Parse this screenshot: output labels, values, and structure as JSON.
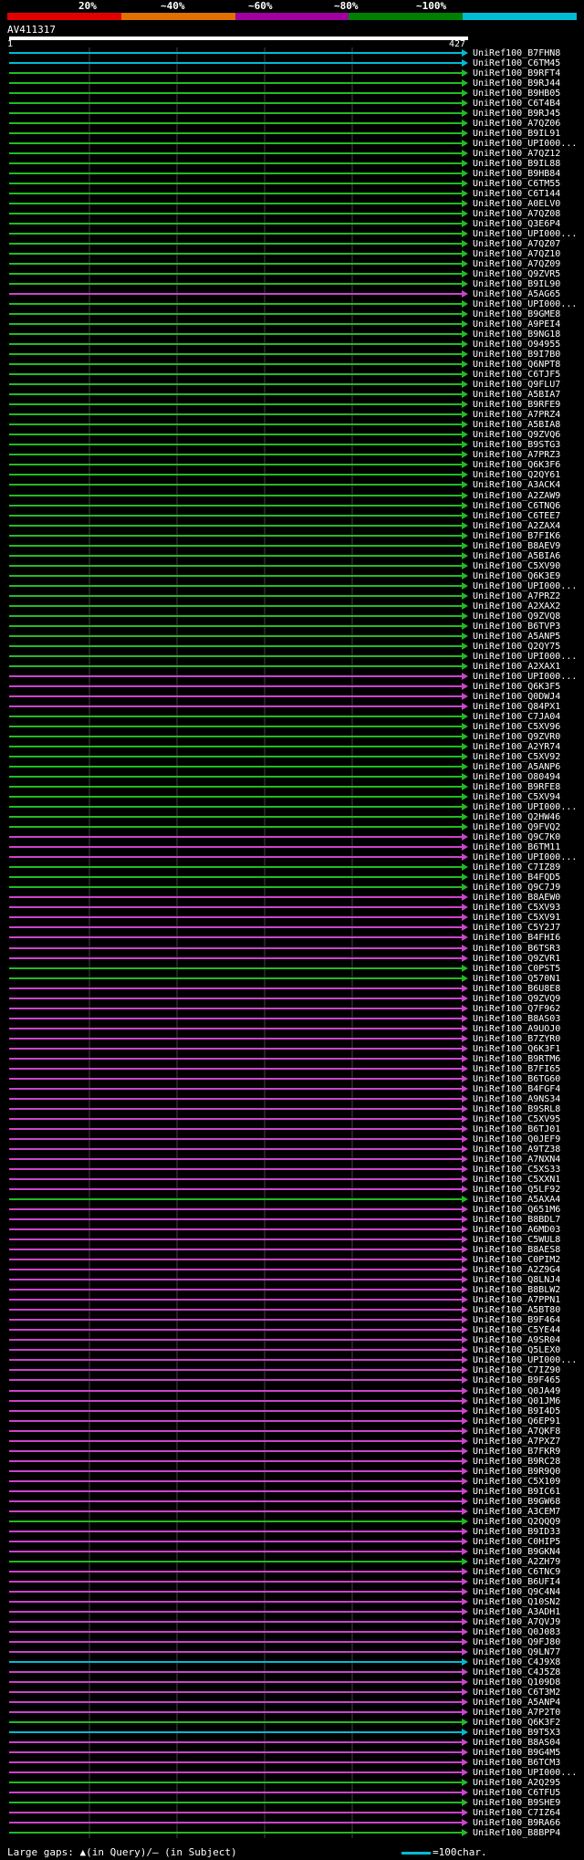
{
  "header": {
    "percent_labels": [
      "20%",
      "~40%",
      "~60%",
      "~80%",
      "~100%"
    ],
    "scale_colors": [
      "#e00000",
      "#e07000",
      "#a000a0",
      "#008000",
      "#00bcd4"
    ],
    "query_name": "AV411317",
    "query_start": "1",
    "query_end": "427"
  },
  "colors": {
    "cyan": "#00bcd4",
    "green": "#22bb22",
    "magenta": "#cc44cc",
    "gridline": "#444444",
    "background": "#000000"
  },
  "hits": [
    {
      "name": "UniRef100_B7FHN8",
      "color": "cyan"
    },
    {
      "name": "UniRef100_C6TM45",
      "color": "cyan"
    },
    {
      "name": "UniRef100_B9RFT4",
      "color": "green"
    },
    {
      "name": "UniRef100_B9RJ44",
      "color": "green"
    },
    {
      "name": "UniRef100_B9HB05",
      "color": "green"
    },
    {
      "name": "UniRef100_C6T4B4",
      "color": "green"
    },
    {
      "name": "UniRef100_B9RJ45",
      "color": "green"
    },
    {
      "name": "UniRef100_A7QZ06",
      "color": "green"
    },
    {
      "name": "UniRef100_B9IL91",
      "color": "green"
    },
    {
      "name": "UniRef100_UPI000...",
      "color": "green"
    },
    {
      "name": "UniRef100_A7QZ12",
      "color": "green"
    },
    {
      "name": "UniRef100_B9IL88",
      "color": "green"
    },
    {
      "name": "UniRef100_B9HB84",
      "color": "green"
    },
    {
      "name": "UniRef100_C6TM55",
      "color": "green"
    },
    {
      "name": "UniRef100_C6T144",
      "color": "green"
    },
    {
      "name": "UniRef100_A0ELV0",
      "color": "green"
    },
    {
      "name": "UniRef100_A7QZ08",
      "color": "green"
    },
    {
      "name": "UniRef100_Q3E6P4",
      "color": "green"
    },
    {
      "name": "UniRef100_UPI000...",
      "color": "green"
    },
    {
      "name": "UniRef100_A7QZ07",
      "color": "green"
    },
    {
      "name": "UniRef100_A7QZ10",
      "color": "green"
    },
    {
      "name": "UniRef100_A7QZ09",
      "color": "green"
    },
    {
      "name": "UniRef100_Q9ZVR5",
      "color": "green"
    },
    {
      "name": "UniRef100_B9IL90",
      "color": "green"
    },
    {
      "name": "UniRef100_A5AG65",
      "color": "magenta"
    },
    {
      "name": "UniRef100_UPI000...",
      "color": "green"
    },
    {
      "name": "UniRef100_B9GME8",
      "color": "green"
    },
    {
      "name": "UniRef100_A9PEI4",
      "color": "green"
    },
    {
      "name": "UniRef100_B9NG18",
      "color": "green"
    },
    {
      "name": "UniRef100_O94955",
      "color": "green"
    },
    {
      "name": "UniRef100_B9I7B0",
      "color": "green"
    },
    {
      "name": "UniRef100_Q6NPT8",
      "color": "green"
    },
    {
      "name": "UniRef100_C6TJF5",
      "color": "green"
    },
    {
      "name": "UniRef100_Q9FLU7",
      "color": "green"
    },
    {
      "name": "UniRef100_A5BIA7",
      "color": "green"
    },
    {
      "name": "UniRef100_B9RFE9",
      "color": "green"
    },
    {
      "name": "UniRef100_A7PRZ4",
      "color": "green"
    },
    {
      "name": "UniRef100_A5BIA8",
      "color": "green"
    },
    {
      "name": "UniRef100_Q9ZVQ6",
      "color": "green"
    },
    {
      "name": "UniRef100_B9STG3",
      "color": "green"
    },
    {
      "name": "UniRef100_A7PRZ3",
      "color": "green"
    },
    {
      "name": "UniRef100_Q6K3F6",
      "color": "green"
    },
    {
      "name": "UniRef100_Q2QY61",
      "color": "green"
    },
    {
      "name": "UniRef100_A3ACK4",
      "color": "green"
    },
    {
      "name": "UniRef100_A2ZAW9",
      "color": "green"
    },
    {
      "name": "UniRef100_C6TNQ6",
      "color": "green"
    },
    {
      "name": "UniRef100_C6TEE7",
      "color": "green"
    },
    {
      "name": "UniRef100_A2ZAX4",
      "color": "green"
    },
    {
      "name": "UniRef100_B7FIK6",
      "color": "green"
    },
    {
      "name": "UniRef100_B8AEV9",
      "color": "green"
    },
    {
      "name": "UniRef100_A5BIA6",
      "color": "green"
    },
    {
      "name": "UniRef100_C5XV90",
      "color": "green"
    },
    {
      "name": "UniRef100_Q6K3E9",
      "color": "green"
    },
    {
      "name": "UniRef100_UPI000...",
      "color": "green"
    },
    {
      "name": "UniRef100_A7PRZ2",
      "color": "green"
    },
    {
      "name": "UniRef100_A2XAX2",
      "color": "green"
    },
    {
      "name": "UniRef100_Q9ZVQ8",
      "color": "green"
    },
    {
      "name": "UniRef100_B6TVP3",
      "color": "green"
    },
    {
      "name": "UniRef100_A5ANP5",
      "color": "green"
    },
    {
      "name": "UniRef100_Q2QY75",
      "color": "green"
    },
    {
      "name": "UniRef100_UPI000...",
      "color": "green"
    },
    {
      "name": "UniRef100_A2XAX1",
      "color": "green"
    },
    {
      "name": "UniRef100_UPI000...",
      "color": "magenta"
    },
    {
      "name": "UniRef100_Q6K3F5",
      "color": "magenta"
    },
    {
      "name": "UniRef100_Q0DWJ4",
      "color": "magenta"
    },
    {
      "name": "UniRef100_Q84PX1",
      "color": "magenta"
    },
    {
      "name": "UniRef100_C7JA04",
      "color": "green"
    },
    {
      "name": "UniRef100_C5XV96",
      "color": "green"
    },
    {
      "name": "UniRef100_Q9ZVR0",
      "color": "green"
    },
    {
      "name": "UniRef100_A2YR74",
      "color": "green"
    },
    {
      "name": "UniRef100_C5XV92",
      "color": "green"
    },
    {
      "name": "UniRef100_A5ANP6",
      "color": "green"
    },
    {
      "name": "UniRef100_O80494",
      "color": "green"
    },
    {
      "name": "UniRef100_B9RFE8",
      "color": "green"
    },
    {
      "name": "UniRef100_C5XV94",
      "color": "green"
    },
    {
      "name": "UniRef100_UPI000...",
      "color": "green"
    },
    {
      "name": "UniRef100_Q2HW46",
      "color": "green"
    },
    {
      "name": "UniRef100_Q9FVQ2",
      "color": "green"
    },
    {
      "name": "UniRef100_Q9C7K0",
      "color": "magenta"
    },
    {
      "name": "UniRef100_B6TM11",
      "color": "magenta"
    },
    {
      "name": "UniRef100_UPI000...",
      "color": "magenta"
    },
    {
      "name": "UniRef100_C7IZ89",
      "color": "green"
    },
    {
      "name": "UniRef100_B4FQD5",
      "color": "green"
    },
    {
      "name": "UniRef100_Q9C7J9",
      "color": "green"
    },
    {
      "name": "UniRef100_B8AEW0",
      "color": "magenta"
    },
    {
      "name": "UniRef100_C5XV93",
      "color": "magenta"
    },
    {
      "name": "UniRef100_C5XV91",
      "color": "magenta"
    },
    {
      "name": "UniRef100_C5Y2J7",
      "color": "magenta"
    },
    {
      "name": "UniRef100_B4FHI6",
      "color": "magenta"
    },
    {
      "name": "UniRef100_B6TSR3",
      "color": "magenta"
    },
    {
      "name": "UniRef100_Q9ZVR1",
      "color": "magenta"
    },
    {
      "name": "UniRef100_C0PST5",
      "color": "green"
    },
    {
      "name": "UniRef100_Q570N1",
      "color": "green"
    },
    {
      "name": "UniRef100_B6U8E8",
      "color": "magenta"
    },
    {
      "name": "UniRef100_Q9ZVQ9",
      "color": "magenta"
    },
    {
      "name": "UniRef100_Q7F962",
      "color": "magenta"
    },
    {
      "name": "UniRef100_B8AS03",
      "color": "magenta"
    },
    {
      "name": "UniRef100_A9UOJ0",
      "color": "magenta"
    },
    {
      "name": "UniRef100_B7ZYR0",
      "color": "magenta"
    },
    {
      "name": "UniRef100_Q6K3F1",
      "color": "magenta"
    },
    {
      "name": "UniRef100_B9RTM6",
      "color": "magenta"
    },
    {
      "name": "UniRef100_B7FI65",
      "color": "magenta"
    },
    {
      "name": "UniRef100_B6TG60",
      "color": "magenta"
    },
    {
      "name": "UniRef100_B4FGF4",
      "color": "magenta"
    },
    {
      "name": "UniRef100_A9NS34",
      "color": "magenta"
    },
    {
      "name": "UniRef100_B9SRL8",
      "color": "magenta"
    },
    {
      "name": "UniRef100_C5XV95",
      "color": "magenta"
    },
    {
      "name": "UniRef100_B6TJ01",
      "color": "magenta"
    },
    {
      "name": "UniRef100_Q0JEF9",
      "color": "magenta"
    },
    {
      "name": "UniRef100_A9TZ38",
      "color": "magenta"
    },
    {
      "name": "UniRef100_A7NXN4",
      "color": "magenta"
    },
    {
      "name": "UniRef100_C5XS33",
      "color": "magenta"
    },
    {
      "name": "UniRef100_C5XXN1",
      "color": "magenta"
    },
    {
      "name": "UniRef100_Q5LF92",
      "color": "magenta"
    },
    {
      "name": "UniRef100_A5AXA4",
      "color": "green"
    },
    {
      "name": "UniRef100_Q651M6",
      "color": "magenta"
    },
    {
      "name": "UniRef100_B8BDL7",
      "color": "magenta"
    },
    {
      "name": "UniRef100_A6MD03",
      "color": "magenta"
    },
    {
      "name": "UniRef100_C5WUL8",
      "color": "magenta"
    },
    {
      "name": "UniRef100_B8AES8",
      "color": "magenta"
    },
    {
      "name": "UniRef100_C0PIM2",
      "color": "magenta"
    },
    {
      "name": "UniRef100_A2Z9G4",
      "color": "magenta"
    },
    {
      "name": "UniRef100_Q8LNJ4",
      "color": "magenta"
    },
    {
      "name": "UniRef100_B8BLW2",
      "color": "magenta"
    },
    {
      "name": "UniRef100_A7PPN1",
      "color": "magenta"
    },
    {
      "name": "UniRef100_A5BT80",
      "color": "magenta"
    },
    {
      "name": "UniRef100_B9F464",
      "color": "magenta"
    },
    {
      "name": "UniRef100_C5YE44",
      "color": "magenta"
    },
    {
      "name": "UniRef100_A9SR04",
      "color": "magenta"
    },
    {
      "name": "UniRef100_Q5LEX0",
      "color": "magenta"
    },
    {
      "name": "UniRef100_UPI000...",
      "color": "magenta"
    },
    {
      "name": "UniRef100_C7IZ90",
      "color": "magenta"
    },
    {
      "name": "UniRef100_B9F465",
      "color": "magenta"
    },
    {
      "name": "UniRef100_Q0JA49",
      "color": "magenta"
    },
    {
      "name": "UniRef100_Q01JM6",
      "color": "magenta"
    },
    {
      "name": "UniRef100_B9I4D5",
      "color": "magenta"
    },
    {
      "name": "UniRef100_Q6EP91",
      "color": "magenta"
    },
    {
      "name": "UniRef100_A7QKF8",
      "color": "magenta"
    },
    {
      "name": "UniRef100_A7PXZ7",
      "color": "magenta"
    },
    {
      "name": "UniRef100_B7FKR9",
      "color": "magenta"
    },
    {
      "name": "UniRef100_B9RC28",
      "color": "magenta"
    },
    {
      "name": "UniRef100_B9R9Q0",
      "color": "magenta"
    },
    {
      "name": "UniRef100_C5X109",
      "color": "magenta"
    },
    {
      "name": "UniRef100_B9IC61",
      "color": "magenta"
    },
    {
      "name": "UniRef100_B9GW68",
      "color": "magenta"
    },
    {
      "name": "UniRef100_A3CEM7",
      "color": "magenta"
    },
    {
      "name": "UniRef100_Q2QQQ9",
      "color": "green"
    },
    {
      "name": "UniRef100_B9ID33",
      "color": "magenta"
    },
    {
      "name": "UniRef100_C0HIP5",
      "color": "magenta"
    },
    {
      "name": "UniRef100_B9GKN4",
      "color": "magenta"
    },
    {
      "name": "UniRef100_A2ZH79",
      "color": "green"
    },
    {
      "name": "UniRef100_C6TNC9",
      "color": "magenta"
    },
    {
      "name": "UniRef100_B6UFI4",
      "color": "magenta"
    },
    {
      "name": "UniRef100_Q9C4N4",
      "color": "magenta"
    },
    {
      "name": "UniRef100_Q10SN2",
      "color": "magenta"
    },
    {
      "name": "UniRef100_A3ADH1",
      "color": "magenta"
    },
    {
      "name": "UniRef100_A7QVJ9",
      "color": "magenta"
    },
    {
      "name": "UniRef100_Q0J083",
      "color": "magenta"
    },
    {
      "name": "UniRef100_Q9FJ80",
      "color": "magenta"
    },
    {
      "name": "UniRef100_Q9LN77",
      "color": "magenta"
    },
    {
      "name": "UniRef100_C4J9X8",
      "color": "cyan"
    },
    {
      "name": "UniRef100_C4J5Z8",
      "color": "magenta"
    },
    {
      "name": "UniRef100_Q109D8",
      "color": "magenta"
    },
    {
      "name": "UniRef100_C6T3M2",
      "color": "magenta"
    },
    {
      "name": "UniRef100_A5ANP4",
      "color": "magenta"
    },
    {
      "name": "UniRef100_A7P2T0",
      "color": "magenta"
    },
    {
      "name": "UniRef100_Q6K3F2",
      "color": "green"
    },
    {
      "name": "UniRef100_B9T5X3",
      "color": "cyan"
    },
    {
      "name": "UniRef100_B8AS04",
      "color": "magenta"
    },
    {
      "name": "UniRef100_B9G4M5",
      "color": "magenta"
    },
    {
      "name": "UniRef100_B6TCM3",
      "color": "magenta"
    },
    {
      "name": "UniRef100_UPI000...",
      "color": "magenta"
    },
    {
      "name": "UniRef100_A2Q295",
      "color": "green"
    },
    {
      "name": "UniRef100_C6TFU5",
      "color": "magenta"
    },
    {
      "name": "UniRef100_B9SHE9",
      "color": "green"
    },
    {
      "name": "UniRef100_C7IZ64",
      "color": "magenta"
    },
    {
      "name": "UniRef100_B9RA66",
      "color": "magenta"
    },
    {
      "name": "UniRef100_B8BPP4",
      "color": "green"
    }
  ],
  "footer": {
    "large_gaps": "Large gaps: ▲(in Query)/– (in Subject)",
    "scale_legend": "=100char."
  }
}
